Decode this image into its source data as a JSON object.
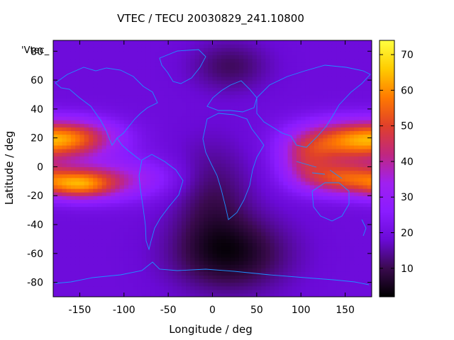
{
  "chart_data": {
    "type": "heatmap",
    "title": "VTEC / TECU 20030829_241.10800",
    "xlabel": "Longitude / deg",
    "ylabel": "Latitude / deg",
    "key_title": "'Vtec_",
    "xlim": [
      -180,
      180
    ],
    "ylim": [
      -90,
      87.5
    ],
    "x_ticks": [
      -150,
      -100,
      -50,
      0,
      50,
      100,
      150
    ],
    "y_ticks": [
      -80,
      -60,
      -40,
      -20,
      0,
      20,
      40,
      60,
      80
    ],
    "colorbar_range": [
      2,
      74
    ],
    "colorbar_ticks": [
      10,
      20,
      30,
      40,
      50,
      60,
      70
    ],
    "colormap": [
      "#000000",
      "#3a0a4e",
      "#6a0ad6",
      "#8a1cff",
      "#a020f0",
      "#c0277f",
      "#e0402a",
      "#ff7a00",
      "#ffcc00",
      "#ffff40"
    ],
    "coastline_color": "#1e90ff",
    "grid": false,
    "features": [
      {
        "lon": -155,
        "lat": 20,
        "lon_sigma": 35,
        "lat_sigma": 9,
        "amp": 28
      },
      {
        "lon": -150,
        "lat": -12,
        "lon_sigma": 28,
        "lat_sigma": 7,
        "amp": 30
      },
      {
        "lon": -110,
        "lat": -8,
        "lon_sigma": 45,
        "lat_sigma": 10,
        "amp": 16
      },
      {
        "lon": 150,
        "lat": 18,
        "lon_sigma": 38,
        "lat_sigma": 10,
        "amp": 32
      },
      {
        "lon": 150,
        "lat": -8,
        "lon_sigma": 32,
        "lat_sigma": 8,
        "amp": 30
      },
      {
        "lon": 105,
        "lat": 5,
        "lon_sigma": 22,
        "lat_sigma": 12,
        "amp": 18
      },
      {
        "lon": 20,
        "lat": -60,
        "lon_sigma": 45,
        "lat_sigma": 18,
        "amp": -14
      },
      {
        "lon": 0,
        "lat": -20,
        "lon_sigma": 30,
        "lat_sigma": 25,
        "amp": -8
      },
      {
        "lon": 20,
        "lat": 70,
        "lon_sigma": 30,
        "lat_sigma": 12,
        "amp": -8
      }
    ],
    "base_value": 19
  }
}
